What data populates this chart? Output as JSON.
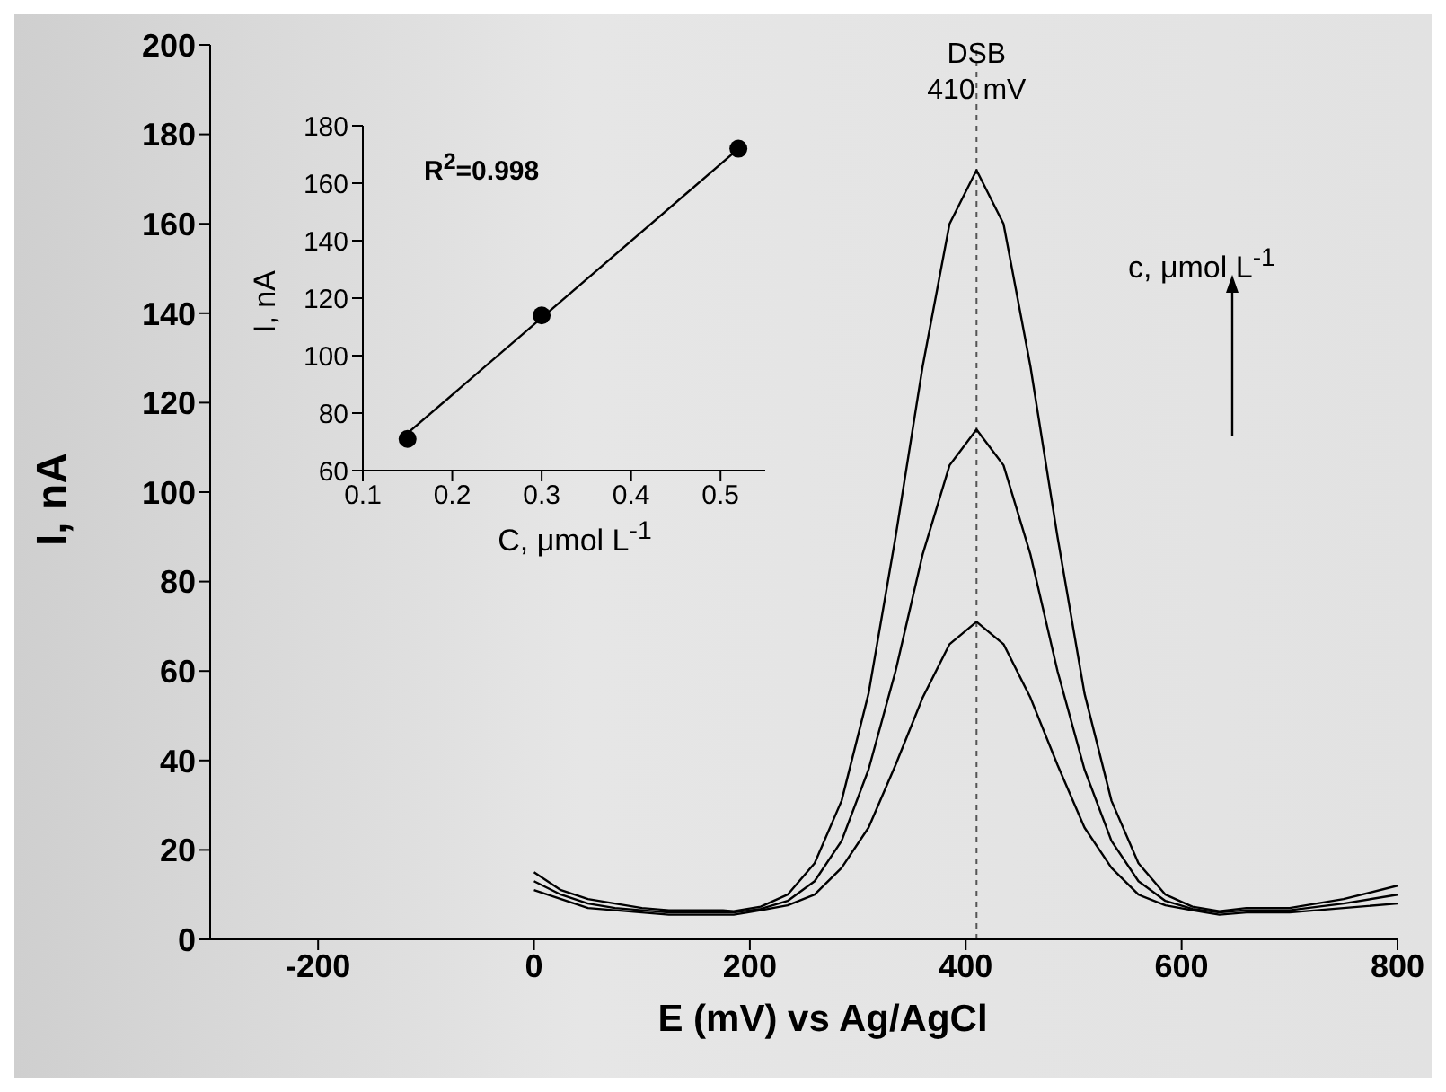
{
  "chart_data": [
    {
      "type": "line",
      "xlabel": "E (mV) vs Ag/AgCl",
      "ylabel": "I, nA",
      "marker": "none",
      "line_style": "solid",
      "xlim": [
        -300,
        800
      ],
      "xticks": [
        -200,
        0,
        200,
        400,
        600,
        800
      ],
      "ylim": [
        0,
        200
      ],
      "yticks": [
        0,
        20,
        40,
        60,
        80,
        100,
        120,
        140,
        160,
        180,
        200
      ],
      "x": [
        0,
        25,
        50,
        75,
        100,
        125,
        150,
        175,
        185,
        210,
        235,
        260,
        285,
        310,
        335,
        360,
        385,
        410,
        435,
        460,
        485,
        510,
        535,
        560,
        585,
        610,
        635,
        660,
        700,
        750,
        800
      ],
      "series": [
        {
          "color": "#000000",
          "values": [
            15,
            11,
            9,
            8,
            7,
            6.5,
            6.5,
            6.5,
            6.3,
            7.3,
            10,
            17,
            31,
            55,
            90,
            128,
            160,
            172,
            160,
            128,
            90,
            55,
            31,
            17,
            10,
            7.3,
            6.3,
            7,
            7,
            9,
            12
          ]
        },
        {
          "color": "#000000",
          "values": [
            13,
            10,
            8,
            7,
            6.5,
            6,
            6,
            6,
            6,
            6.8,
            8.6,
            13,
            22,
            38,
            60,
            86,
            106,
            114,
            106,
            86,
            60,
            38,
            22,
            13,
            8.6,
            6.8,
            6,
            6.5,
            6.5,
            8,
            10
          ]
        },
        {
          "color": "#000000",
          "values": [
            11,
            9,
            7,
            6.5,
            6,
            5.5,
            5.5,
            5.5,
            5.5,
            6.5,
            7.6,
            10,
            16,
            25,
            39,
            54,
            66,
            71,
            66,
            54,
            39,
            25,
            16,
            10,
            7.6,
            6.5,
            5.5,
            6,
            6,
            7,
            8
          ]
        }
      ],
      "ref_lines": [
        {
          "axis": "x",
          "value": 410,
          "label": "DSB 410 mV",
          "color": "#555555",
          "line_style": "dotted"
        }
      ],
      "annotations": [
        "c, μmol L$^{-1}$"
      ]
    },
    {
      "type": "scatter",
      "xlabel": "C, μmol L$^{-1}$",
      "ylabel": "I, nA",
      "xlim": [
        0.1,
        0.55
      ],
      "xticks": [
        0.1,
        0.2,
        0.3,
        0.4,
        0.5
      ],
      "ylim": [
        60,
        180
      ],
      "yticks": [
        60,
        80,
        100,
        120,
        140,
        160,
        180
      ],
      "series": [
        {
          "color": "#000000",
          "marker": "circle",
          "x": [
            0.15,
            0.3,
            0.52
          ],
          "values": [
            71,
            114,
            172
          ]
        },
        {
          "type": "line",
          "color": "#000000",
          "marker": "none",
          "x": [
            0.15,
            0.52
          ],
          "values": [
            73,
            172
          ]
        }
      ],
      "annotations": [
        "R$^{2}$=0.998"
      ]
    }
  ]
}
